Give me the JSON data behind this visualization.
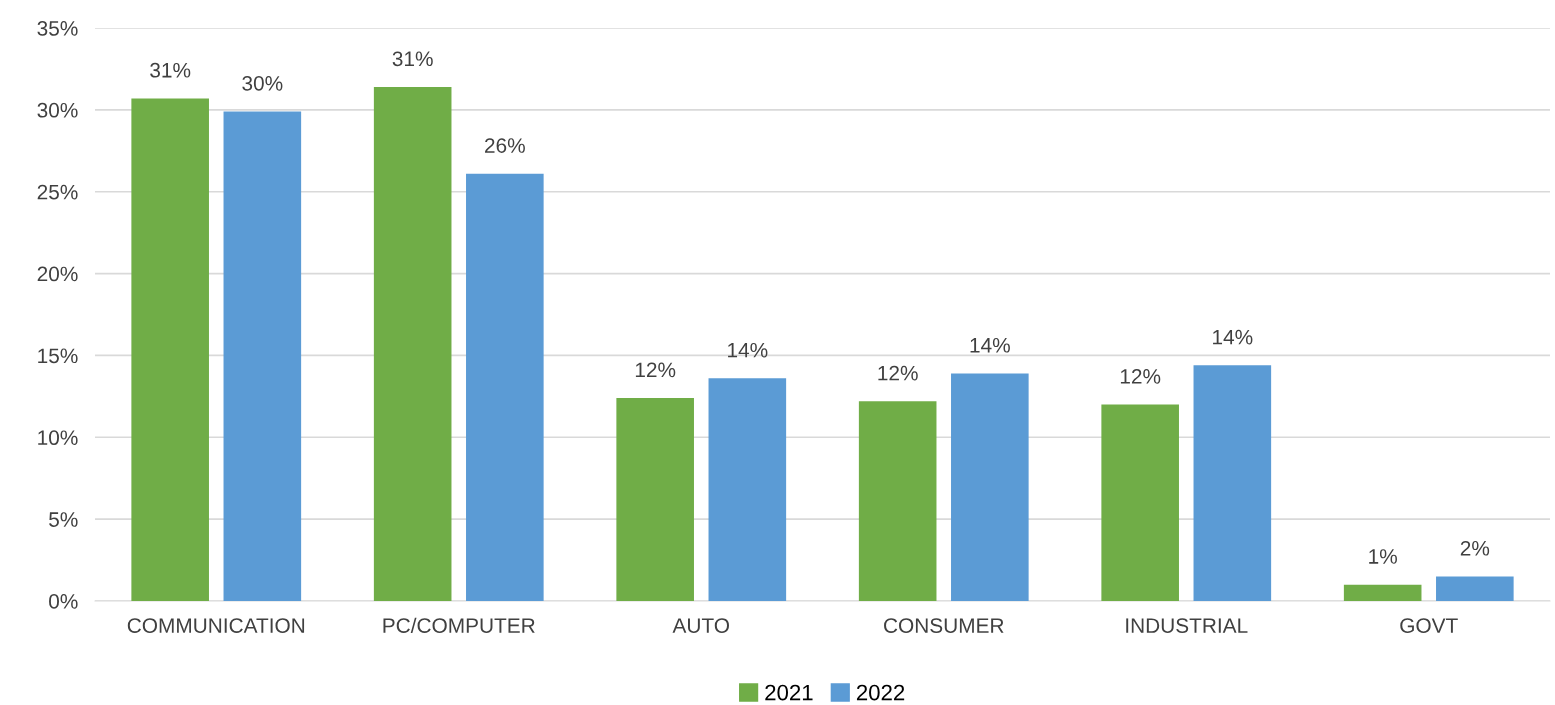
{
  "chart_data": {
    "type": "bar",
    "categories": [
      "COMMUNICATION",
      "PC/COMPUTER",
      "AUTO",
      "CONSUMER",
      "INDUSTRIAL",
      "GOVT"
    ],
    "series": [
      {
        "name": "2021",
        "color": "#70ad47",
        "values": [
          30.7,
          31.4,
          12.4,
          12.2,
          12.0,
          1.0
        ],
        "value_labels": [
          "31%",
          "31%",
          "12%",
          "12%",
          "12%",
          "1%"
        ]
      },
      {
        "name": "2022",
        "color": "#5b9bd5",
        "values": [
          29.9,
          26.1,
          13.6,
          13.9,
          14.4,
          1.5
        ],
        "value_labels": [
          "30%",
          "26%",
          "14%",
          "14%",
          "14%",
          "2%"
        ]
      }
    ],
    "ylim": [
      0,
      35
    ],
    "yticks": [
      {
        "value": 0,
        "label": "0%"
      },
      {
        "value": 5,
        "label": "5%"
      },
      {
        "value": 10,
        "label": "10%"
      },
      {
        "value": 15,
        "label": "15%"
      },
      {
        "value": 20,
        "label": "20%"
      },
      {
        "value": 25,
        "label": "25%"
      },
      {
        "value": 30,
        "label": "30%"
      },
      {
        "value": 35,
        "label": "35%"
      }
    ],
    "grid": "y",
    "legend": "bottom"
  }
}
